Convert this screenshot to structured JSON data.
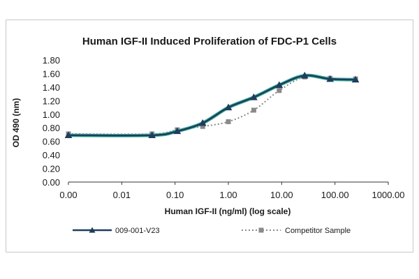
{
  "chart_data": {
    "type": "line",
    "title": "Human IGF-II Induced Proliferation of FDC-P1 Cells",
    "xlabel": "Human IGF-II (ng/ml) (log scale)",
    "ylabel": "OD 490 (nm)",
    "x_scale": "log",
    "xlim": [
      0.001,
      1000
    ],
    "ylim": [
      0,
      1.8
    ],
    "x_tick_labels": [
      "0.00",
      "0.01",
      "0.10",
      "1.00",
      "10.00",
      "100.00",
      "1000.00"
    ],
    "y_tick_labels": [
      "0.00",
      "0.20",
      "0.40",
      "0.60",
      "0.80",
      "1.00",
      "1.20",
      "1.40",
      "1.60",
      "1.80"
    ],
    "grid": false,
    "legend_position": "bottom",
    "series": [
      {
        "name": "009-001-V23",
        "color": "#1f3d5c",
        "marker": "triangle",
        "style": "solid",
        "x": [
          0.001,
          0.037,
          0.11,
          0.33,
          1.0,
          3.0,
          9.0,
          27.0,
          81.0,
          243.0
        ],
        "y": [
          0.69,
          0.69,
          0.75,
          0.87,
          1.1,
          1.25,
          1.43,
          1.57,
          1.52,
          1.51
        ]
      },
      {
        "name": "Competitor Sample",
        "color": "#8a8a8a",
        "marker": "square",
        "style": "dotted",
        "x": [
          0.001,
          0.037,
          0.11,
          0.33,
          1.0,
          3.0,
          9.0,
          27.0,
          81.0,
          243.0
        ],
        "y": [
          0.71,
          0.71,
          0.77,
          0.82,
          0.89,
          1.06,
          1.35,
          1.55,
          1.53,
          1.52
        ]
      }
    ]
  }
}
